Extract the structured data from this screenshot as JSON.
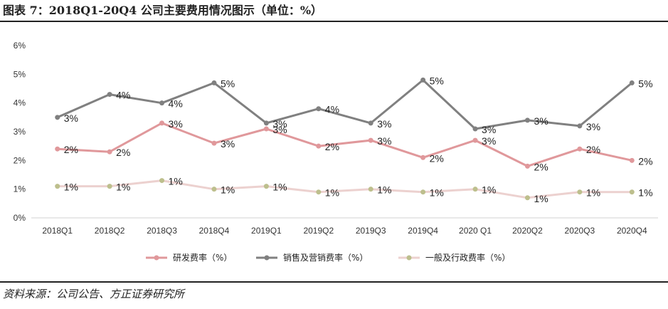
{
  "title": "图表 7：2018Q1-20Q4 公司主要费用情况图示（单位：%）",
  "source": "资料来源：公司公告、方正证券研究所",
  "chart_data": {
    "type": "line",
    "title": "图表 7：2018Q1-20Q4 公司主要费用情况图示（单位：%）",
    "xlabel": "",
    "ylabel": "",
    "categories": [
      "2018Q1",
      "2018Q2",
      "2018Q3",
      "2018Q4",
      "2019Q1",
      "2019Q2",
      "2019Q3",
      "2019Q4",
      "2020 Q1",
      "2020Q2",
      "2020Q3",
      "2020Q4"
    ],
    "ylim": [
      0,
      6
    ],
    "yticks": [
      "0%",
      "1%",
      "2%",
      "3%",
      "4%",
      "5%",
      "6%"
    ],
    "grid": false,
    "legend": "bottom",
    "series": [
      {
        "name": "研发费率（%）",
        "color": "#e0989b",
        "values": [
          2.4,
          2.3,
          3.3,
          2.6,
          3.1,
          2.5,
          2.7,
          2.1,
          2.7,
          1.8,
          2.4,
          2.0
        ],
        "labels": [
          "2%",
          "2%",
          "3%",
          "3%",
          "3%",
          "2%",
          "3%",
          "2%",
          "3%",
          "2%",
          "2%",
          "2%"
        ]
      },
      {
        "name": "销售及营销费率（%）",
        "color": "#808080",
        "values": [
          3.5,
          4.3,
          4.0,
          4.7,
          3.3,
          3.8,
          3.3,
          4.8,
          3.1,
          3.4,
          3.2,
          4.7
        ],
        "labels": [
          "3%",
          "4%",
          "4%",
          "5%",
          "3%",
          "4%",
          "3%",
          "5%",
          "3%",
          "3%",
          "3%",
          "5%"
        ]
      },
      {
        "name": "一般及行政费率（%）",
        "color": "#ecd1cf",
        "marker_color": "#bdbf8d",
        "values": [
          1.1,
          1.1,
          1.3,
          1.0,
          1.1,
          0.9,
          1.0,
          0.9,
          1.0,
          0.7,
          0.9,
          0.9
        ],
        "labels": [
          "1%",
          "1%",
          "1%",
          "1%",
          "1%",
          "1%",
          "1%",
          "1%",
          "1%",
          "1%",
          "1%",
          "1%"
        ]
      }
    ]
  }
}
